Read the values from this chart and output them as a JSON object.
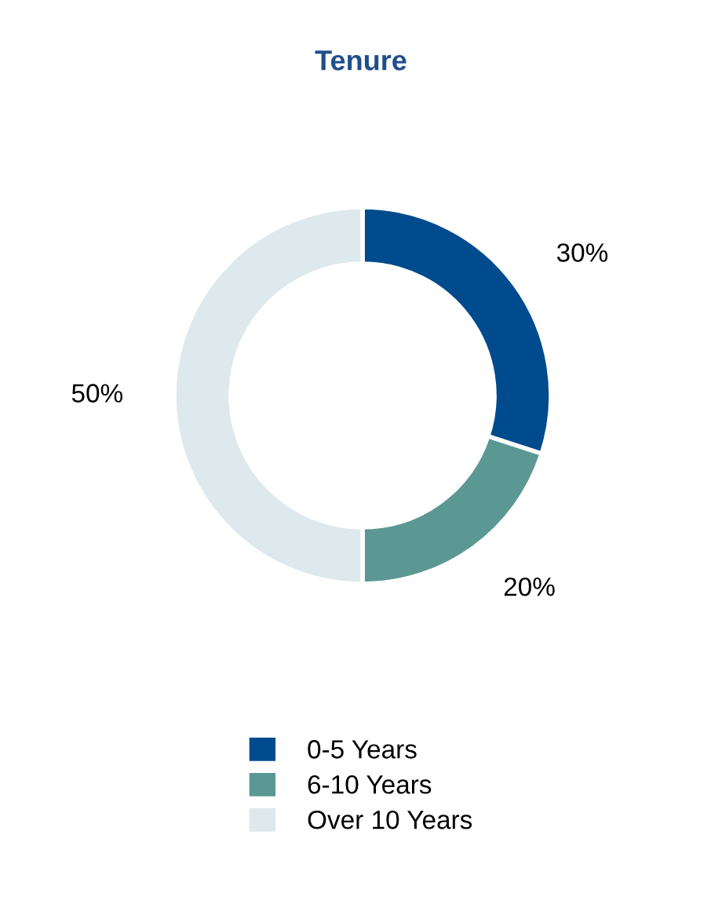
{
  "chart_data": {
    "type": "donut",
    "title": "Tenure",
    "categories": [
      "0-5 Years",
      "6-10 Years",
      "Over 10 Years"
    ],
    "values": [
      30,
      20,
      50
    ],
    "colors": [
      "#004b8d",
      "#5b9894",
      "#dde9ec"
    ],
    "value_labels": [
      "30%",
      "20%",
      "50%"
    ],
    "legend": "bottom"
  }
}
